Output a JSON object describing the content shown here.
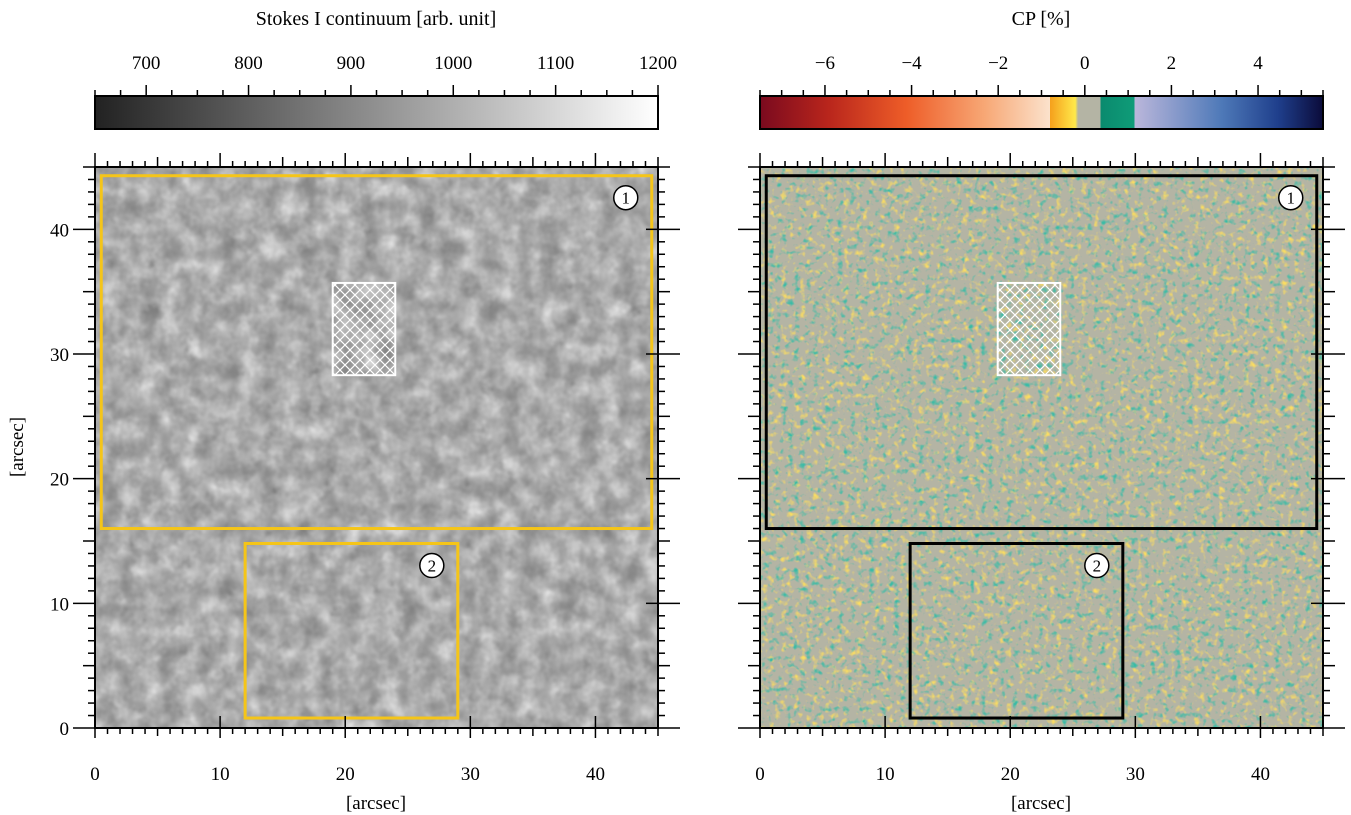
{
  "chart_data": [
    {
      "type": "heatmap",
      "colorbar": {
        "title": "Stokes I continuum [arb. unit]",
        "range": [
          650,
          1200
        ],
        "ticks": [
          700,
          800,
          900,
          1000,
          1100,
          1200
        ],
        "colors": [
          "#222222",
          "#ffffff"
        ]
      },
      "xlabel": "[arcsec]",
      "ylabel": "[arcsec]",
      "xlim": [
        0,
        45
      ],
      "ylim": [
        0,
        45
      ],
      "xticks": [
        0,
        10,
        20,
        30,
        40
      ],
      "yticks": [
        0,
        10,
        20,
        30,
        40
      ],
      "regions": [
        {
          "label": "1",
          "x0": 0.5,
          "x1": 44.5,
          "y0": 16,
          "y1": 44.3
        },
        {
          "label": "2",
          "x0": 12,
          "x1": 29,
          "y0": 0.8,
          "y1": 14.8
        }
      ],
      "hatched_region": {
        "x0": 19,
        "x1": 24,
        "y0": 28.3,
        "y1": 35.7
      },
      "region_color": "#f5c518"
    },
    {
      "type": "heatmap",
      "colorbar": {
        "title": "CP [%]",
        "range": [
          -7.5,
          5.5
        ],
        "ticks": [
          -6,
          -4,
          -2,
          0,
          2,
          4
        ],
        "tick_labels": [
          "−6",
          "−4",
          "−2",
          "0",
          "2",
          "4"
        ],
        "colors": [
          "#7a0a1e",
          "#e8552a",
          "#f8d7b5",
          "#f7a81e",
          "#ffe84a",
          "#b3b3a3",
          "#0a8a6e",
          "#b6b2d6",
          "#2d5da6",
          "#0b0b3a"
        ]
      },
      "xlabel": "[arcsec]",
      "ylabel": "",
      "xlim": [
        0,
        45
      ],
      "ylim": [
        0,
        45
      ],
      "xticks": [
        0,
        10,
        20,
        30,
        40
      ],
      "yticks": [
        0,
        10,
        20,
        30,
        40
      ],
      "regions": [
        {
          "label": "1",
          "x0": 0.5,
          "x1": 44.5,
          "y0": 16,
          "y1": 44.3
        },
        {
          "label": "2",
          "x0": 12,
          "x1": 29,
          "y0": 0.8,
          "y1": 14.8
        }
      ],
      "hatched_region": {
        "x0": 19,
        "x1": 24,
        "y0": 28.3,
        "y1": 35.7
      },
      "region_color": "#000000"
    }
  ]
}
